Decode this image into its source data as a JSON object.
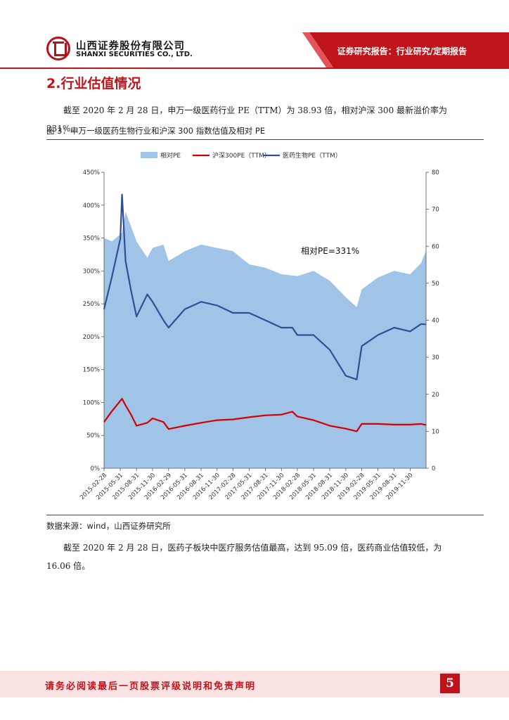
{
  "header": {
    "company_cn": "山西证券股份有限公司",
    "company_en": "SHANXI SECURITIES CO., LTD.",
    "report_type": "证券研究报告：行业研究/定期报告",
    "logo_icon": "securities-logo-icon",
    "accent": "#c0141c"
  },
  "section": {
    "title": "2.行业估值情况"
  },
  "paragraph1": "截至 2020 年 2 月 28 日，申万一级医药行业 PE（TTM）为 38.93 倍，相对沪深 300 最新溢价率为 231%。",
  "figure": {
    "title": "图 3：申万一级医药生物行业和沪深 300 指数估值及相对 PE",
    "source": "数据来源：wind，山西证券研究所"
  },
  "paragraph2": "截至 2020 年 2 月 28 日，医药子板块中医疗服务估值最高，达到 95.09 倍，医药商业估值较低，为 16.06 倍。",
  "footer": {
    "disclaimer": "请务必阅读最后一页股票评级说明和免责声明",
    "page_number": "5"
  },
  "chart_data": {
    "type": "line",
    "title": "",
    "legend": [
      "相对PE",
      "沪深300PE（TTM）",
      "医药生物PE（TTM）"
    ],
    "legend_position": "top",
    "annotation": "相对PE=331%",
    "x_ticks": [
      "2015-02-28",
      "2015-05-31",
      "2015-08-31",
      "2015-11-30",
      "2016-02-29",
      "2016-05-31",
      "2016-08-31",
      "2016-11-30",
      "2017-02-28",
      "2017-05-31",
      "2017-08-31",
      "2017-11-30",
      "2018-02-28",
      "2018-05-31",
      "2018-08-31",
      "2018-11-30",
      "2019-02-28",
      "2019-05-31",
      "2019-08-31",
      "2019-11-30"
    ],
    "y_left": {
      "ticks": [
        "0%",
        "50%",
        "100%",
        "150%",
        "200%",
        "250%",
        "300%",
        "350%",
        "400%",
        "450%"
      ],
      "range": [
        0,
        450
      ]
    },
    "y_right": {
      "ticks": [
        "0",
        "10",
        "20",
        "30",
        "40",
        "50",
        "60",
        "70",
        "80"
      ],
      "range": [
        0,
        80
      ]
    },
    "x_range": [
      "2015-02-28",
      "2020-02-28"
    ],
    "colors": {
      "relative_pe": "#9fc4e7",
      "hs300": "#d40000",
      "pharma": "#2f4f95"
    },
    "series": [
      {
        "name": "相对PE",
        "axis": "left",
        "kind": "area",
        "x": [
          "2015-02-28",
          "2015-04-15",
          "2015-06-10",
          "2015-06-30",
          "2015-08-31",
          "2015-10-31",
          "2015-11-30",
          "2016-01-31",
          "2016-02-29",
          "2016-05-31",
          "2016-08-31",
          "2016-11-30",
          "2017-02-28",
          "2017-05-31",
          "2017-08-31",
          "2017-11-30",
          "2018-02-28",
          "2018-05-31",
          "2018-08-31",
          "2018-11-30",
          "2019-01-31",
          "2019-02-28",
          "2019-05-31",
          "2019-08-31",
          "2019-11-30",
          "2020-01-31",
          "2020-02-28"
        ],
        "values": [
          350,
          345,
          358,
          390,
          345,
          320,
          335,
          340,
          315,
          330,
          340,
          335,
          330,
          310,
          305,
          295,
          292,
          300,
          285,
          260,
          245,
          272,
          290,
          300,
          295,
          312,
          331
        ]
      },
      {
        "name": "沪深300PE（TTM）",
        "axis": "right",
        "x": [
          "2015-02-28",
          "2015-04-15",
          "2015-06-10",
          "2015-06-30",
          "2015-07-31",
          "2015-08-31",
          "2015-10-31",
          "2015-11-30",
          "2016-01-31",
          "2016-02-29",
          "2016-05-31",
          "2016-08-31",
          "2016-11-30",
          "2017-02-28",
          "2017-05-31",
          "2017-08-31",
          "2017-11-30",
          "2018-01-31",
          "2018-02-28",
          "2018-05-31",
          "2018-08-31",
          "2018-11-30",
          "2019-01-31",
          "2019-02-28",
          "2019-05-31",
          "2019-08-31",
          "2019-11-30",
          "2020-01-31",
          "2020-02-28"
        ],
        "values": [
          12.5,
          15.5,
          18.8,
          17.0,
          14.5,
          11.5,
          12.3,
          13.5,
          12.5,
          10.6,
          11.5,
          12.3,
          13.0,
          13.2,
          13.8,
          14.3,
          14.5,
          15.3,
          14.0,
          13.0,
          11.5,
          10.7,
          10.0,
          12.0,
          12.0,
          11.8,
          11.8,
          12.0,
          11.7
        ]
      },
      {
        "name": "医药生物PE（TTM）",
        "axis": "right",
        "x": [
          "2015-02-28",
          "2015-04-15",
          "2015-05-31",
          "2015-06-10",
          "2015-06-30",
          "2015-07-31",
          "2015-08-31",
          "2015-10-31",
          "2015-11-30",
          "2016-01-31",
          "2016-02-29",
          "2016-05-31",
          "2016-08-31",
          "2016-11-30",
          "2017-02-28",
          "2017-05-31",
          "2017-08-31",
          "2017-11-30",
          "2018-01-31",
          "2018-02-28",
          "2018-05-31",
          "2018-08-31",
          "2018-11-30",
          "2019-01-31",
          "2019-02-28",
          "2019-05-31",
          "2019-08-31",
          "2019-11-30",
          "2020-01-31",
          "2020-02-28"
        ],
        "values": [
          43,
          52,
          62,
          74,
          56,
          48,
          41,
          47,
          45,
          40,
          38,
          43,
          45,
          44,
          42,
          42,
          40,
          38,
          38,
          36,
          36,
          32,
          25,
          24,
          33,
          36,
          38,
          37,
          39,
          38.9
        ]
      }
    ]
  }
}
